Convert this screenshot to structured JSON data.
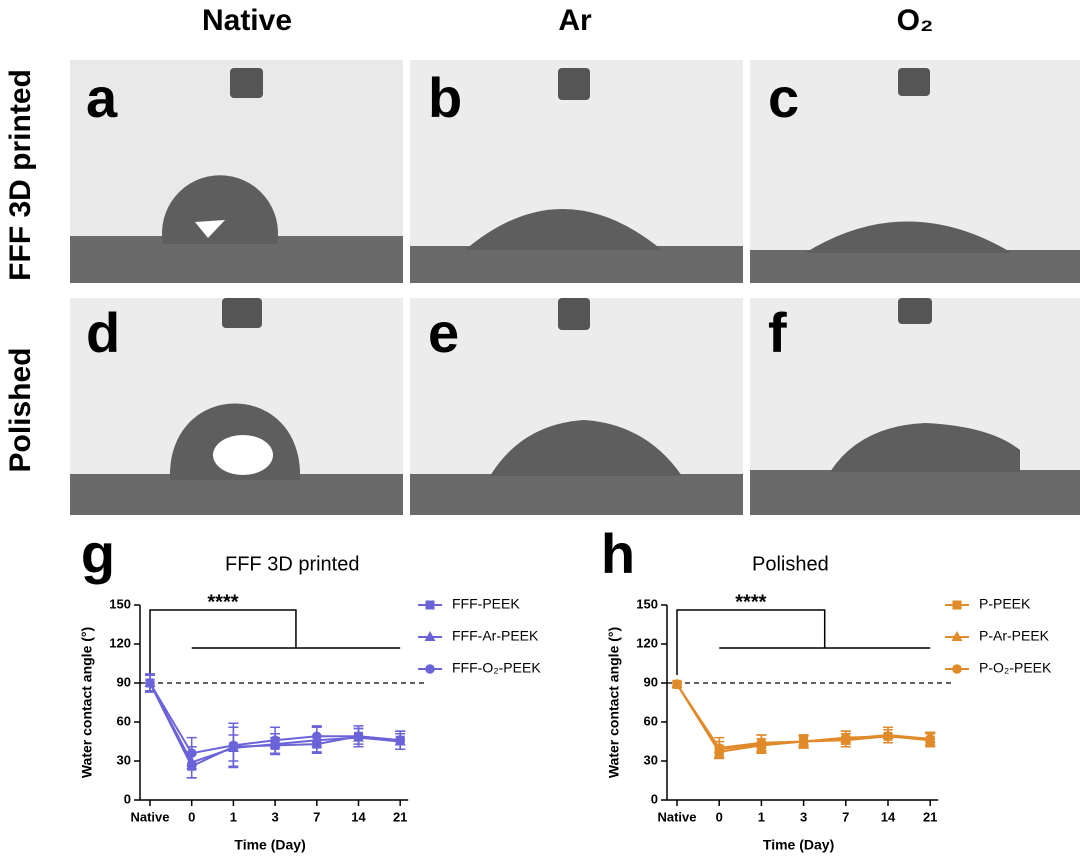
{
  "panels": {
    "columns": [
      "Native",
      "Ar",
      "O₂"
    ],
    "rows": [
      "FFF 3D printed",
      "Polished"
    ],
    "letters": [
      "a",
      "b",
      "c",
      "d",
      "e",
      "f"
    ]
  },
  "chart_data": [
    {
      "type": "line",
      "panel_letter": "g",
      "title": "FFF 3D printed",
      "xlabel": "Time (Day)",
      "ylabel": "Water contact angle (°)",
      "categories": [
        "Native",
        "0",
        "1",
        "3",
        "7",
        "14",
        "21"
      ],
      "ylim": [
        0,
        150
      ],
      "yticks": [
        0,
        30,
        60,
        90,
        120,
        150
      ],
      "reference_line": 90,
      "annotation": "****",
      "series": [
        {
          "name": "FFF-PEEK",
          "color": "#6b63d8",
          "marker": "square",
          "values": [
            90,
            26,
            41,
            42,
            43,
            49,
            46
          ],
          "errors": [
            6,
            9,
            15,
            6,
            6,
            6,
            7
          ]
        },
        {
          "name": "FFF-Ar-PEEK",
          "color": "#6b63d8",
          "marker": "triangle",
          "values": [
            90,
            29,
            40,
            43,
            46,
            48,
            45
          ],
          "errors": [
            6,
            12,
            10,
            8,
            10,
            7,
            6
          ]
        },
        {
          "name": "FFF-O₂-PEEK",
          "color": "#6b63d8",
          "marker": "circle",
          "values": [
            90,
            36,
            42,
            46,
            49,
            49,
            46
          ],
          "errors": [
            7,
            12,
            17,
            10,
            8,
            8,
            7
          ]
        }
      ]
    },
    {
      "type": "line",
      "panel_letter": "h",
      "title": "Polished",
      "xlabel": "Time (Day)",
      "ylabel": "Water contact angle (°)",
      "categories": [
        "Native",
        "0",
        "1",
        "3",
        "7",
        "14",
        "21"
      ],
      "ylim": [
        0,
        150
      ],
      "yticks": [
        0,
        30,
        60,
        90,
        120,
        150
      ],
      "reference_line": 90,
      "annotation": "****",
      "series": [
        {
          "name": "P-PEEK",
          "color": "#e08a2a",
          "marker": "square",
          "values": [
            89,
            37,
            42,
            45,
            46,
            49,
            46
          ],
          "errors": [
            2,
            5,
            5,
            4,
            5,
            5,
            5
          ]
        },
        {
          "name": "P-Ar-PEEK",
          "color": "#e08a2a",
          "marker": "triangle",
          "values": [
            89,
            39,
            43,
            45,
            47,
            50,
            47
          ],
          "errors": [
            2,
            6,
            7,
            5,
            6,
            6,
            5
          ]
        },
        {
          "name": "P-O₂-PEEK",
          "color": "#e08a2a",
          "marker": "circle",
          "values": [
            89,
            40,
            44,
            45,
            48,
            49,
            47
          ],
          "errors": [
            2,
            8,
            6,
            5,
            5,
            5,
            5
          ]
        }
      ]
    }
  ]
}
